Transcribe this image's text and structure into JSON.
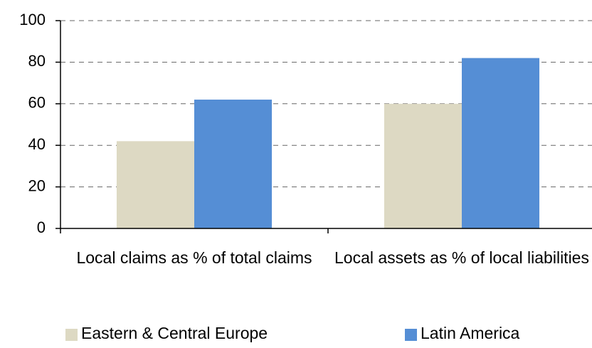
{
  "chart_data": {
    "type": "bar",
    "categories": [
      "Local claims as % of total claims",
      "Local assets as % of local liabilities"
    ],
    "series": [
      {
        "name": "Eastern & Central Europe",
        "color": "#ddd9c3",
        "values": [
          42,
          60
        ]
      },
      {
        "name": "Latin America",
        "color": "#558ed5",
        "values": [
          62,
          82
        ]
      }
    ],
    "ylim": [
      0,
      100
    ],
    "yticks": [
      0,
      20,
      40,
      60,
      80,
      100
    ],
    "grid": true,
    "legend": "bottom"
  }
}
